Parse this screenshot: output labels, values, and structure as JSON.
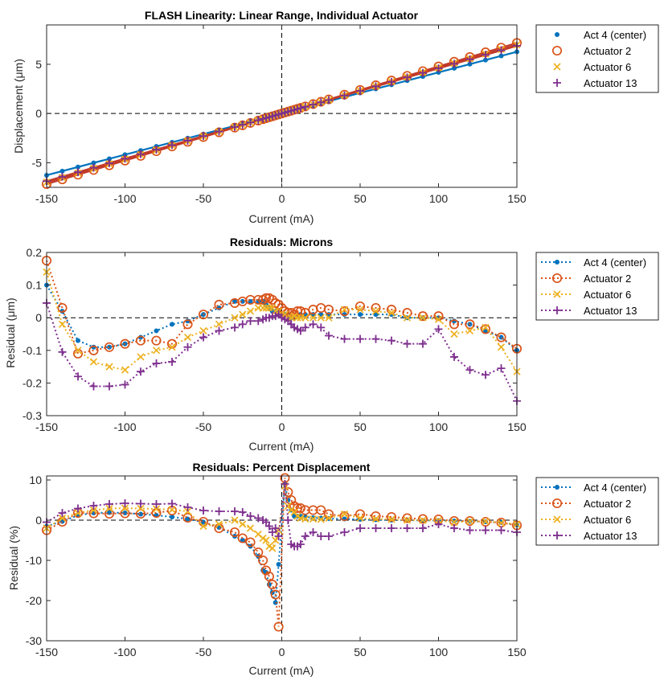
{
  "colors": {
    "act4": "#0072BD",
    "act2": "#D95319",
    "act6": "#EDB120",
    "act13": "#7E2F8E",
    "fit": "#C0392B"
  },
  "chart_data": [
    {
      "type": "line",
      "title": "FLASH Linearity: Linear Range, Individual Actuator",
      "xlabel": "Current (mA)",
      "ylabel": "Displacement (μm)",
      "xlim": [
        -150,
        150
      ],
      "ylim": [
        -7.5,
        9
      ],
      "xticks": [
        -150,
        -100,
        -50,
        0,
        50,
        100,
        150
      ],
      "xtick_labels": [
        "-150",
        "-100",
        "-50",
        "0",
        "50",
        "100",
        "150"
      ],
      "yticks": [
        -5,
        0,
        5
      ],
      "ytick_labels": [
        "-5",
        "0",
        "5"
      ],
      "legend": [
        "Act 4 (center)",
        "Actuator 2",
        "Actuator 6",
        "Actuator 13"
      ],
      "legend_position": "outside-right",
      "x": [
        -150,
        -140,
        -130,
        -120,
        -110,
        -100,
        -90,
        -80,
        -70,
        -60,
        -50,
        -40,
        -30,
        -25,
        -20,
        -15,
        -12,
        -10,
        -8,
        -6,
        -4,
        -2,
        0,
        2,
        4,
        6,
        8,
        10,
        12,
        15,
        20,
        25,
        30,
        40,
        50,
        60,
        70,
        80,
        90,
        100,
        110,
        120,
        130,
        140,
        150
      ],
      "slopes": {
        "act4": 0.0418,
        "act2": 0.0478,
        "act6": 0.0465,
        "act13": 0.0458
      }
    },
    {
      "type": "line",
      "title": "Residuals: Microns",
      "xlabel": "Current (mA)",
      "ylabel": "Residual (μm)",
      "xlim": [
        -150,
        150
      ],
      "ylim": [
        -0.3,
        0.2
      ],
      "xticks": [
        -150,
        -100,
        -50,
        0,
        50,
        100,
        150
      ],
      "xtick_labels": [
        "-150",
        "-100",
        "-50",
        "0",
        "50",
        "100",
        "150"
      ],
      "yticks": [
        -0.3,
        -0.2,
        -0.1,
        0,
        0.1,
        0.2
      ],
      "ytick_labels": [
        "-0.3",
        "-0.2",
        "-0.1",
        "0",
        "0.1",
        "0.2"
      ],
      "legend": [
        "Act 4 (center)",
        "Actuator 2",
        "Actuator 6",
        "Actuator 13"
      ],
      "legend_position": "outside-right",
      "series": [
        {
          "name": "Act 4 (center)",
          "key": "act4",
          "marker": "dot",
          "x": [
            -150,
            -140,
            -130,
            -120,
            -110,
            -100,
            -90,
            -80,
            -70,
            -60,
            -50,
            -40,
            -30,
            -25,
            -20,
            -15,
            -12,
            -10,
            -8,
            -6,
            -4,
            -2,
            0,
            2,
            4,
            6,
            8,
            10,
            12,
            15,
            20,
            25,
            30,
            40,
            50,
            60,
            70,
            80,
            90,
            100,
            110,
            120,
            130,
            140,
            150
          ],
          "values": [
            0.1,
            0.02,
            -0.07,
            -0.09,
            -0.09,
            -0.08,
            -0.06,
            -0.04,
            -0.02,
            -0.01,
            0.01,
            0.03,
            0.05,
            0.05,
            0.05,
            0.05,
            0.05,
            0.04,
            0.03,
            0.02,
            0.02,
            0.02,
            0.01,
            0.01,
            0.01,
            0.0,
            0.0,
            0.01,
            0.01,
            0.01,
            0.01,
            0.01,
            0.01,
            0.01,
            0.01,
            0.01,
            0.01,
            0.0,
            0.0,
            0.0,
            -0.01,
            -0.02,
            -0.04,
            -0.06,
            -0.1
          ]
        },
        {
          "name": "Actuator 2",
          "key": "act2",
          "marker": "circle",
          "x": [
            -150,
            -140,
            -130,
            -120,
            -110,
            -100,
            -90,
            -80,
            -70,
            -60,
            -50,
            -40,
            -30,
            -25,
            -20,
            -15,
            -12,
            -10,
            -8,
            -6,
            -4,
            -2,
            0,
            2,
            4,
            6,
            8,
            10,
            12,
            15,
            20,
            25,
            30,
            40,
            50,
            60,
            70,
            80,
            90,
            100,
            110,
            120,
            130,
            140,
            150
          ],
          "values": [
            0.175,
            0.03,
            -0.11,
            -0.1,
            -0.09,
            -0.08,
            -0.07,
            -0.07,
            -0.08,
            -0.02,
            0.01,
            0.04,
            0.045,
            0.05,
            0.055,
            0.055,
            0.055,
            0.06,
            0.06,
            0.055,
            0.045,
            0.04,
            0.03,
            0.02,
            0.015,
            0.015,
            0.01,
            0.02,
            0.02,
            0.015,
            0.025,
            0.03,
            0.025,
            0.02,
            0.035,
            0.03,
            0.025,
            0.015,
            0.005,
            0.005,
            -0.02,
            -0.02,
            -0.035,
            -0.06,
            -0.095
          ]
        },
        {
          "name": "Actuator 6",
          "key": "act6",
          "marker": "x",
          "x": [
            -150,
            -140,
            -130,
            -120,
            -110,
            -100,
            -90,
            -80,
            -70,
            -60,
            -50,
            -40,
            -30,
            -25,
            -20,
            -15,
            -12,
            -10,
            -8,
            -6,
            -4,
            -2,
            0,
            2,
            4,
            6,
            8,
            10,
            12,
            15,
            20,
            25,
            30,
            40,
            50,
            60,
            70,
            80,
            90,
            100,
            110,
            120,
            130,
            140,
            150
          ],
          "values": [
            0.14,
            -0.02,
            -0.1,
            -0.135,
            -0.15,
            -0.16,
            -0.12,
            -0.1,
            -0.09,
            -0.06,
            -0.04,
            -0.02,
            0.0,
            0.01,
            0.02,
            0.03,
            0.03,
            0.03,
            0.03,
            0.03,
            0.02,
            0.02,
            0.01,
            0.01,
            0.0,
            0.0,
            0.005,
            0.0,
            0.0,
            0.0,
            0.0,
            0.0,
            0.0,
            0.025,
            0.025,
            0.02,
            0.015,
            0.0,
            0.0,
            -0.005,
            -0.05,
            -0.04,
            -0.03,
            -0.09,
            -0.165
          ]
        },
        {
          "name": "Actuator 13",
          "key": "act13",
          "marker": "plus",
          "x": [
            -150,
            -140,
            -130,
            -120,
            -110,
            -100,
            -90,
            -80,
            -70,
            -60,
            -50,
            -40,
            -30,
            -25,
            -20,
            -15,
            -12,
            -10,
            -8,
            -6,
            -4,
            -2,
            0,
            2,
            4,
            6,
            8,
            10,
            12,
            15,
            20,
            25,
            30,
            40,
            50,
            60,
            70,
            80,
            90,
            100,
            110,
            120,
            130,
            140,
            150
          ],
          "values": [
            0.045,
            -0.105,
            -0.18,
            -0.21,
            -0.21,
            -0.205,
            -0.165,
            -0.14,
            -0.135,
            -0.09,
            -0.06,
            -0.04,
            -0.03,
            -0.02,
            -0.01,
            -0.01,
            -0.005,
            0.0,
            0.0,
            0.005,
            0.005,
            0.01,
            0.0,
            -0.005,
            -0.01,
            -0.02,
            -0.03,
            -0.035,
            -0.04,
            -0.03,
            -0.02,
            -0.03,
            -0.055,
            -0.065,
            -0.065,
            -0.065,
            -0.07,
            -0.08,
            -0.08,
            -0.035,
            -0.12,
            -0.16,
            -0.175,
            -0.155,
            -0.255
          ]
        }
      ]
    },
    {
      "type": "line",
      "title": "Residuals: Percent Displacement",
      "xlabel": "Current (mA)",
      "ylabel": "Residual (%)",
      "xlim": [
        -150,
        150
      ],
      "ylim": [
        -30,
        11
      ],
      "xticks": [
        -150,
        -100,
        -50,
        0,
        50,
        100,
        150
      ],
      "xtick_labels": [
        "-150",
        "-100",
        "-50",
        "0",
        "50",
        "100",
        "150"
      ],
      "yticks": [
        -30,
        -20,
        -10,
        0,
        10
      ],
      "ytick_labels": [
        "-30",
        "-20",
        "-10",
        "0",
        "10"
      ],
      "legend": [
        "Act 4 (center)",
        "Actuator 2",
        "Actuator 6",
        "Actuator 13"
      ],
      "legend_position": "outside-right",
      "series": [
        {
          "name": "Act 4 (center)",
          "key": "act4",
          "marker": "dot",
          "x": [
            -150,
            -140,
            -130,
            -120,
            -110,
            -100,
            -90,
            -80,
            -70,
            -60,
            -50,
            -40,
            -30,
            -25,
            -20,
            -15,
            -12,
            -10,
            -8,
            -6,
            -4,
            -2,
            2,
            4,
            6,
            8,
            10,
            12,
            15,
            20,
            25,
            30,
            40,
            50,
            60,
            70,
            80,
            90,
            100,
            110,
            120,
            130,
            140,
            150
          ],
          "values": [
            -1.5,
            -0.3,
            1.2,
            1.8,
            1.9,
            1.8,
            1.5,
            1.2,
            0.8,
            0.3,
            -0.5,
            -1.8,
            -4.0,
            -5.0,
            -6.5,
            -9.0,
            -12.5,
            -13.0,
            -16.0,
            -18.0,
            -20.5,
            -11.0,
            9.0,
            5.0,
            2.5,
            1.0,
            1.0,
            1.0,
            0.8,
            0.6,
            0.5,
            0.4,
            0.3,
            0.2,
            0.1,
            0.0,
            0.0,
            -0.1,
            -0.1,
            -0.2,
            -0.3,
            -0.4,
            -0.6,
            -1.2
          ]
        },
        {
          "name": "Actuator 2",
          "key": "act2",
          "marker": "circle",
          "x": [
            -150,
            -140,
            -130,
            -120,
            -110,
            -100,
            -90,
            -80,
            -70,
            -60,
            -50,
            -40,
            -30,
            -25,
            -20,
            -15,
            -12,
            -10,
            -8,
            -6,
            -4,
            -2,
            2,
            4,
            6,
            8,
            10,
            12,
            15,
            20,
            25,
            30,
            40,
            50,
            60,
            70,
            80,
            90,
            100,
            110,
            120,
            130,
            140,
            150
          ],
          "values": [
            -2.5,
            -0.4,
            1.8,
            1.7,
            1.6,
            1.7,
            1.6,
            1.8,
            2.4,
            0.6,
            -0.4,
            -2.0,
            -3.0,
            -4.5,
            -5.5,
            -8.0,
            -10.0,
            -12.5,
            -14.0,
            -16.0,
            -18.5,
            -26.5,
            10.5,
            7.0,
            5.0,
            3.5,
            3.0,
            3.0,
            2.5,
            2.5,
            2.5,
            1.5,
            1.0,
            1.5,
            1.0,
            0.8,
            0.5,
            0.3,
            0.2,
            -0.2,
            -0.2,
            -0.4,
            -0.6,
            -1.3
          ]
        },
        {
          "name": "Actuator 6",
          "key": "act6",
          "marker": "x",
          "x": [
            -150,
            -140,
            -130,
            -120,
            -110,
            -100,
            -90,
            -80,
            -70,
            -60,
            -50,
            -40,
            -30,
            -25,
            -20,
            -15,
            -12,
            -10,
            -8,
            -6,
            -4,
            -2,
            2,
            4,
            6,
            8,
            10,
            12,
            15,
            20,
            25,
            30,
            40,
            50,
            60,
            70,
            80,
            90,
            100,
            110,
            120,
            130,
            140,
            150
          ],
          "values": [
            -2.0,
            0.5,
            1.8,
            2.5,
            2.9,
            3.0,
            2.9,
            2.8,
            2.6,
            2.2,
            -1.5,
            -1.0,
            0.0,
            -1.0,
            -2.0,
            -3.5,
            -4.5,
            -5.0,
            -6.5,
            -7.0,
            -5.0,
            -2.5,
            8.5,
            3.5,
            2.5,
            2.0,
            1.0,
            0.5,
            0.3,
            0.3,
            0.2,
            0.5,
            1.5,
            0.5,
            0.3,
            0.2,
            0.0,
            0.0,
            -0.1,
            -0.5,
            -0.3,
            -0.3,
            -0.7,
            -1.0
          ]
        },
        {
          "name": "Actuator 13",
          "key": "act13",
          "marker": "plus",
          "x": [
            -150,
            -140,
            -130,
            -120,
            -110,
            -100,
            -90,
            -80,
            -70,
            -60,
            -50,
            -40,
            -30,
            -25,
            -20,
            -15,
            -12,
            -10,
            -8,
            -6,
            -4,
            -2,
            2,
            4,
            6,
            8,
            10,
            12,
            15,
            20,
            25,
            30,
            40,
            50,
            60,
            70,
            80,
            90,
            100,
            110,
            120,
            130,
            140,
            150
          ],
          "values": [
            -0.5,
            1.8,
            2.9,
            3.6,
            4.0,
            4.2,
            4.1,
            4.0,
            4.1,
            3.2,
            2.4,
            2.2,
            2.2,
            2.0,
            1.0,
            0.5,
            0.0,
            -0.5,
            -1.5,
            -3.0,
            -2.0,
            -4.0,
            9.0,
            0.0,
            -6.0,
            -6.5,
            -6.5,
            -6.0,
            -4.0,
            -3.0,
            -4.0,
            -4.0,
            -3.0,
            -2.0,
            -2.0,
            -2.0,
            -2.0,
            -2.0,
            -1.0,
            -2.0,
            -2.5,
            -2.5,
            -2.5,
            -3.0
          ]
        }
      ]
    }
  ]
}
